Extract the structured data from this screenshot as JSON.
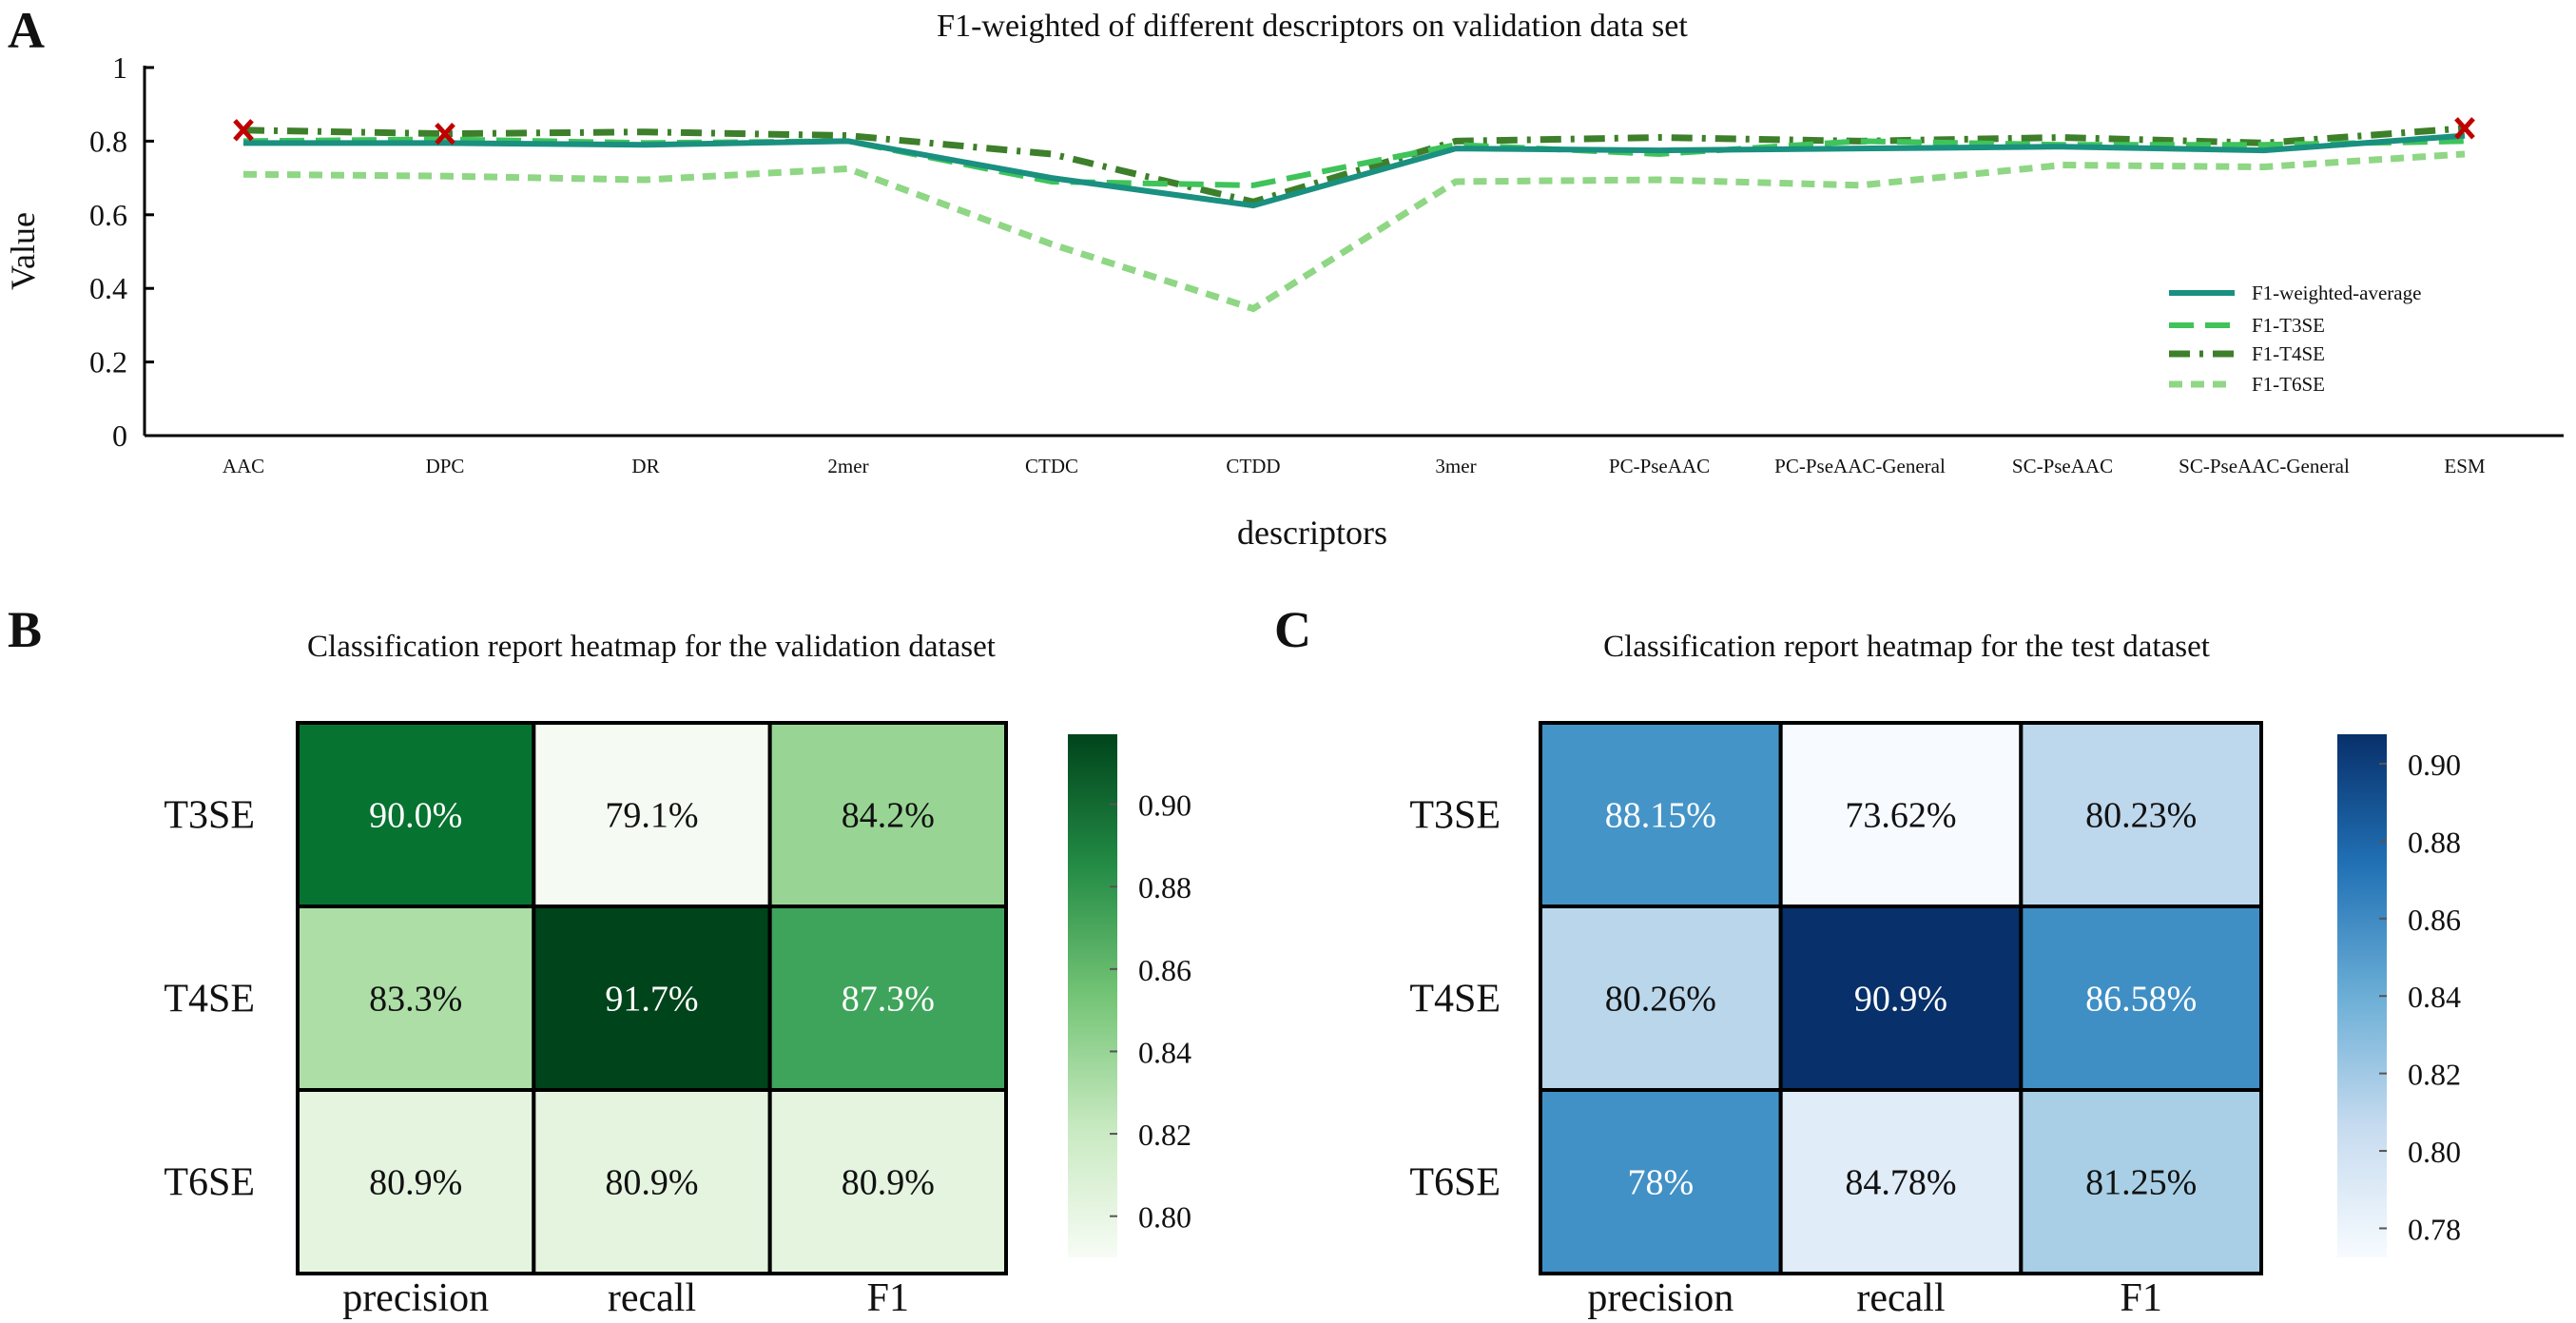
{
  "panels": {
    "a": "A",
    "b": "B",
    "c": "C"
  },
  "chart_data": [
    {
      "type": "line",
      "title": "F1-weighted of different descriptors on validation data set",
      "xlabel": "descriptors",
      "ylabel": "Value",
      "ylim": [
        0,
        1
      ],
      "yticks": [
        "0",
        "0.2",
        "0.4",
        "0.6",
        "0.8",
        "1"
      ],
      "grid": false,
      "legend_position": "right",
      "categories": [
        "AAC",
        "DPC",
        "DR",
        "2mer",
        "CTDC",
        "CTDD",
        "3mer",
        "PC-PseAAC",
        "PC-PseAAC-General",
        "SC-PseAAC",
        "SC-PseAAC-General",
        "ESM"
      ],
      "series": [
        {
          "name": "F1-weighted-average",
          "color": "#1a9080",
          "style": "solid",
          "values": [
            0.795,
            0.795,
            0.79,
            0.8,
            0.7,
            0.625,
            0.78,
            0.775,
            0.78,
            0.785,
            0.775,
            0.815
          ]
        },
        {
          "name": "F1-T3SE",
          "color": "#3fc35a",
          "style": "dashed",
          "values": [
            0.8,
            0.805,
            0.795,
            0.8,
            0.69,
            0.68,
            0.79,
            0.765,
            0.8,
            0.79,
            0.79,
            0.8
          ]
        },
        {
          "name": "F1-T4SE",
          "color": "#3d7f2a",
          "style": "dashdot",
          "values": [
            0.83,
            0.82,
            0.825,
            0.815,
            0.765,
            0.635,
            0.8,
            0.81,
            0.8,
            0.81,
            0.795,
            0.835
          ]
        },
        {
          "name": "F1-T6SE",
          "color": "#8fd685",
          "style": "dotted",
          "values": [
            0.71,
            0.705,
            0.695,
            0.725,
            0.52,
            0.345,
            0.69,
            0.695,
            0.68,
            0.735,
            0.73,
            0.765
          ]
        }
      ],
      "markers": {
        "symbol": "x",
        "color": "#c00000",
        "series": "F1-T4SE",
        "categories": [
          "AAC",
          "DPC",
          "ESM"
        ]
      }
    },
    {
      "type": "heatmap",
      "title": "Classification report heatmap  for the validation dataset",
      "rows": [
        "T3SE",
        "T4SE",
        "T6SE"
      ],
      "columns": [
        "precision",
        "recall",
        "F1"
      ],
      "labels": [
        [
          "90.0%",
          "79.1%",
          "84.2%"
        ],
        [
          "83.3%",
          "91.7%",
          "87.3%"
        ],
        [
          "80.9%",
          "80.9%",
          "80.9%"
        ]
      ],
      "values": [
        [
          0.9,
          0.791,
          0.842
        ],
        [
          0.833,
          0.917,
          0.873
        ],
        [
          0.809,
          0.809,
          0.809
        ]
      ],
      "cell_colors": [
        [
          "#077331",
          "#f5fbf2",
          "#98d594"
        ],
        [
          "#acdea6",
          "#00441b",
          "#3fa45b"
        ],
        [
          "#e4f4df",
          "#e4f4df",
          "#e4f4df"
        ]
      ],
      "colormap": "Greens",
      "colorbar": {
        "range": [
          0.79,
          0.917
        ],
        "ticks": [
          "0.80",
          "0.82",
          "0.84",
          "0.86",
          "0.88",
          "0.90"
        ],
        "stops": [
          "#f7fcf5",
          "#c7e9c0",
          "#74c476",
          "#238b45",
          "#00441b"
        ]
      }
    },
    {
      "type": "heatmap",
      "title": "Classification report heatmap  for the test dataset",
      "rows": [
        "T3SE",
        "T4SE",
        "T6SE"
      ],
      "columns": [
        "precision",
        "recall",
        "F1"
      ],
      "labels": [
        [
          "88.15%",
          "73.62%",
          "80.23%"
        ],
        [
          "80.26%",
          "90.9%",
          "86.58%"
        ],
        [
          "78%",
          "84.78%",
          "81.25%"
        ]
      ],
      "values": [
        [
          0.8815,
          0.7362,
          0.8023
        ],
        [
          0.8026,
          0.909,
          0.8658
        ],
        [
          0.78,
          0.8478,
          0.8125
        ]
      ],
      "cell_colors": [
        [
          "#4594c7",
          "#f7fbff",
          "#bdd7ec"
        ],
        [
          "#b9d6ea",
          "#08306b",
          "#3f8fc5"
        ],
        [
          "#4191c6",
          "#e0ecf8",
          "#a8cfe5"
        ]
      ],
      "colormap": "Blues",
      "colorbar": {
        "range": [
          0.7725,
          0.9076
        ],
        "ticks": [
          "0.78",
          "0.80",
          "0.82",
          "0.84",
          "0.86",
          "0.88",
          "0.90"
        ],
        "stops": [
          "#f7fbff",
          "#c6dbef",
          "#6baed6",
          "#2171b5",
          "#08306b"
        ]
      }
    }
  ]
}
